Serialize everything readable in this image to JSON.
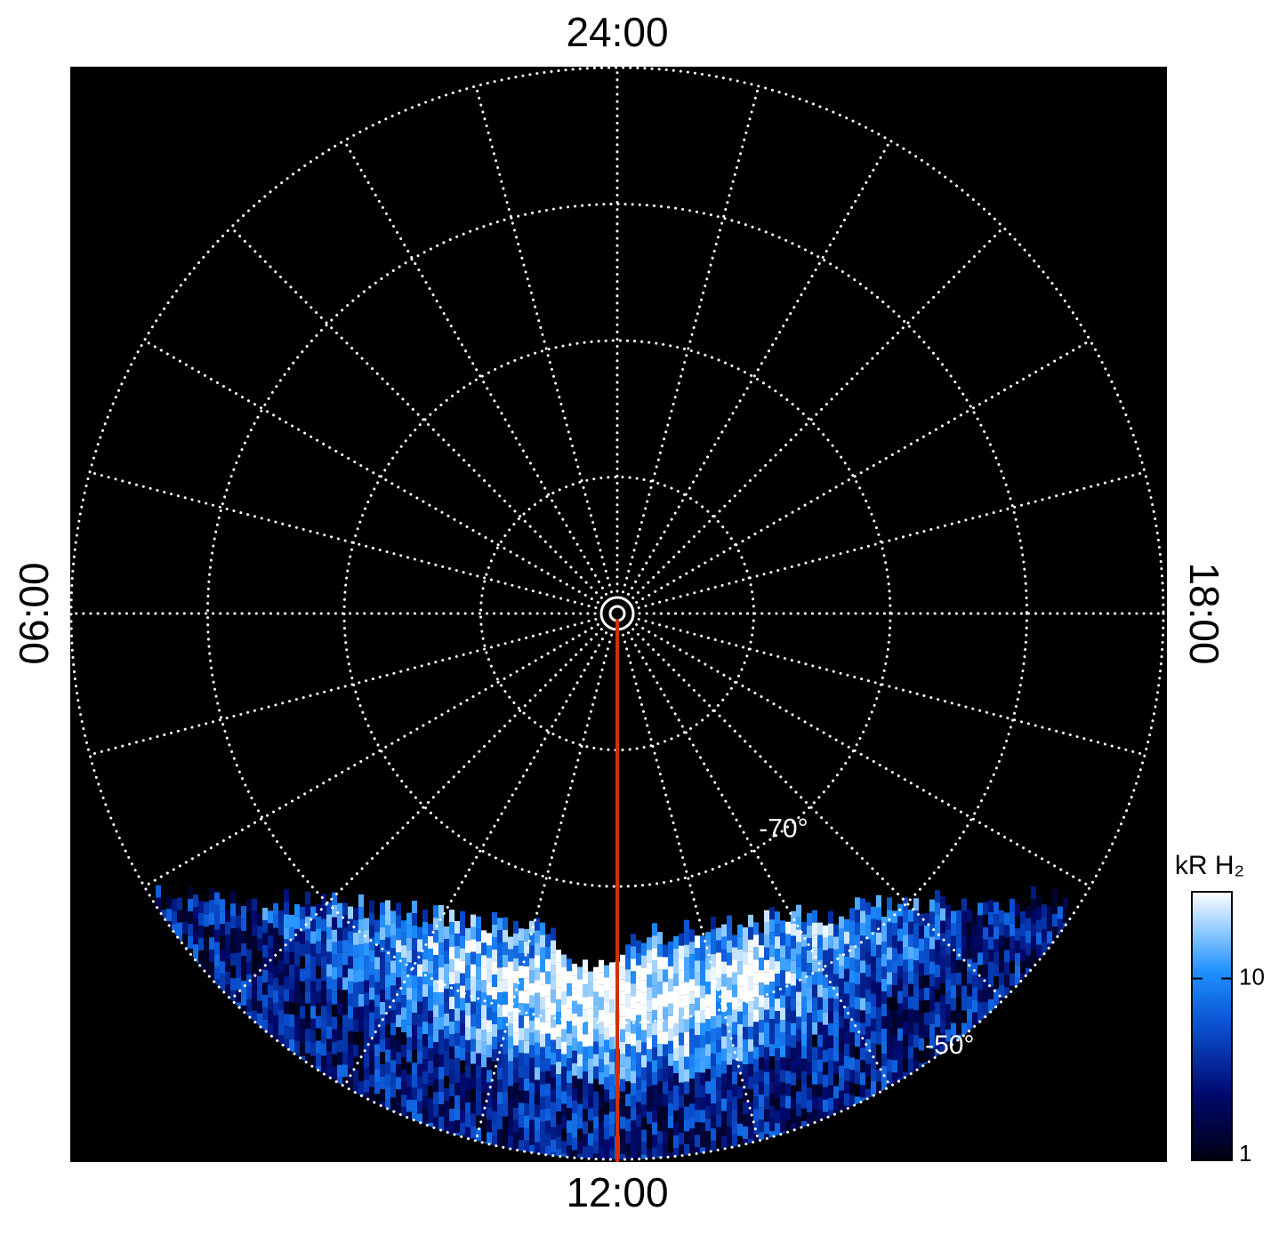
{
  "chart_data": {
    "type": "polar-image",
    "local_time_labels": [
      {
        "hour": 24,
        "label": "24:00"
      },
      {
        "hour": 6,
        "label": "06:00"
      },
      {
        "hour": 12,
        "label": "12:00"
      },
      {
        "hour": 18,
        "label": "18:00"
      }
    ],
    "rlim": [
      -90,
      -50
    ],
    "rgrid": [
      -80,
      -70,
      -60,
      -50
    ],
    "rticks": [
      {
        "value": -70,
        "label": "-70°"
      },
      {
        "value": -50,
        "label": "-50°"
      }
    ],
    "theta_grid_step_hours": 1,
    "meridian_color": "#d0300a",
    "colorbar": {
      "label": "kR H₂",
      "clim": [
        1,
        30
      ],
      "log": true,
      "ticks": [
        1,
        10
      ]
    }
  }
}
